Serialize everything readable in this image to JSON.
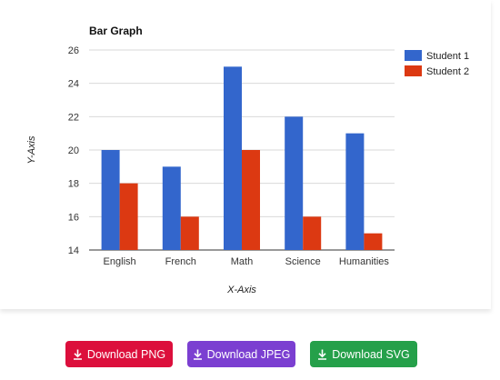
{
  "chart_data": {
    "type": "bar",
    "title": "Bar Graph",
    "xlabel": "X-Axis",
    "ylabel": "Y-Axis",
    "categories": [
      "English",
      "French",
      "Math",
      "Science",
      "Humanities"
    ],
    "series": [
      {
        "name": "Student 1",
        "color": "#3366cc",
        "values": [
          20,
          19,
          25,
          22,
          21
        ]
      },
      {
        "name": "Student 2",
        "color": "#dc3912",
        "values": [
          18,
          16,
          20,
          16,
          15
        ]
      }
    ],
    "ylim": [
      14,
      26
    ],
    "yticks": [
      "14",
      "16",
      "18",
      "20",
      "22",
      "24",
      "26"
    ],
    "grid": true,
    "legend_position": "right"
  },
  "buttons": {
    "png": {
      "label": "Download PNG",
      "color": "#dc0f3c",
      "icon": "download-icon"
    },
    "jpeg": {
      "label": "Download JPEG",
      "color": "#7b3fd1",
      "icon": "download-icon"
    },
    "svg": {
      "label": "Download SVG",
      "color": "#25a04a",
      "icon": "download-icon"
    }
  }
}
